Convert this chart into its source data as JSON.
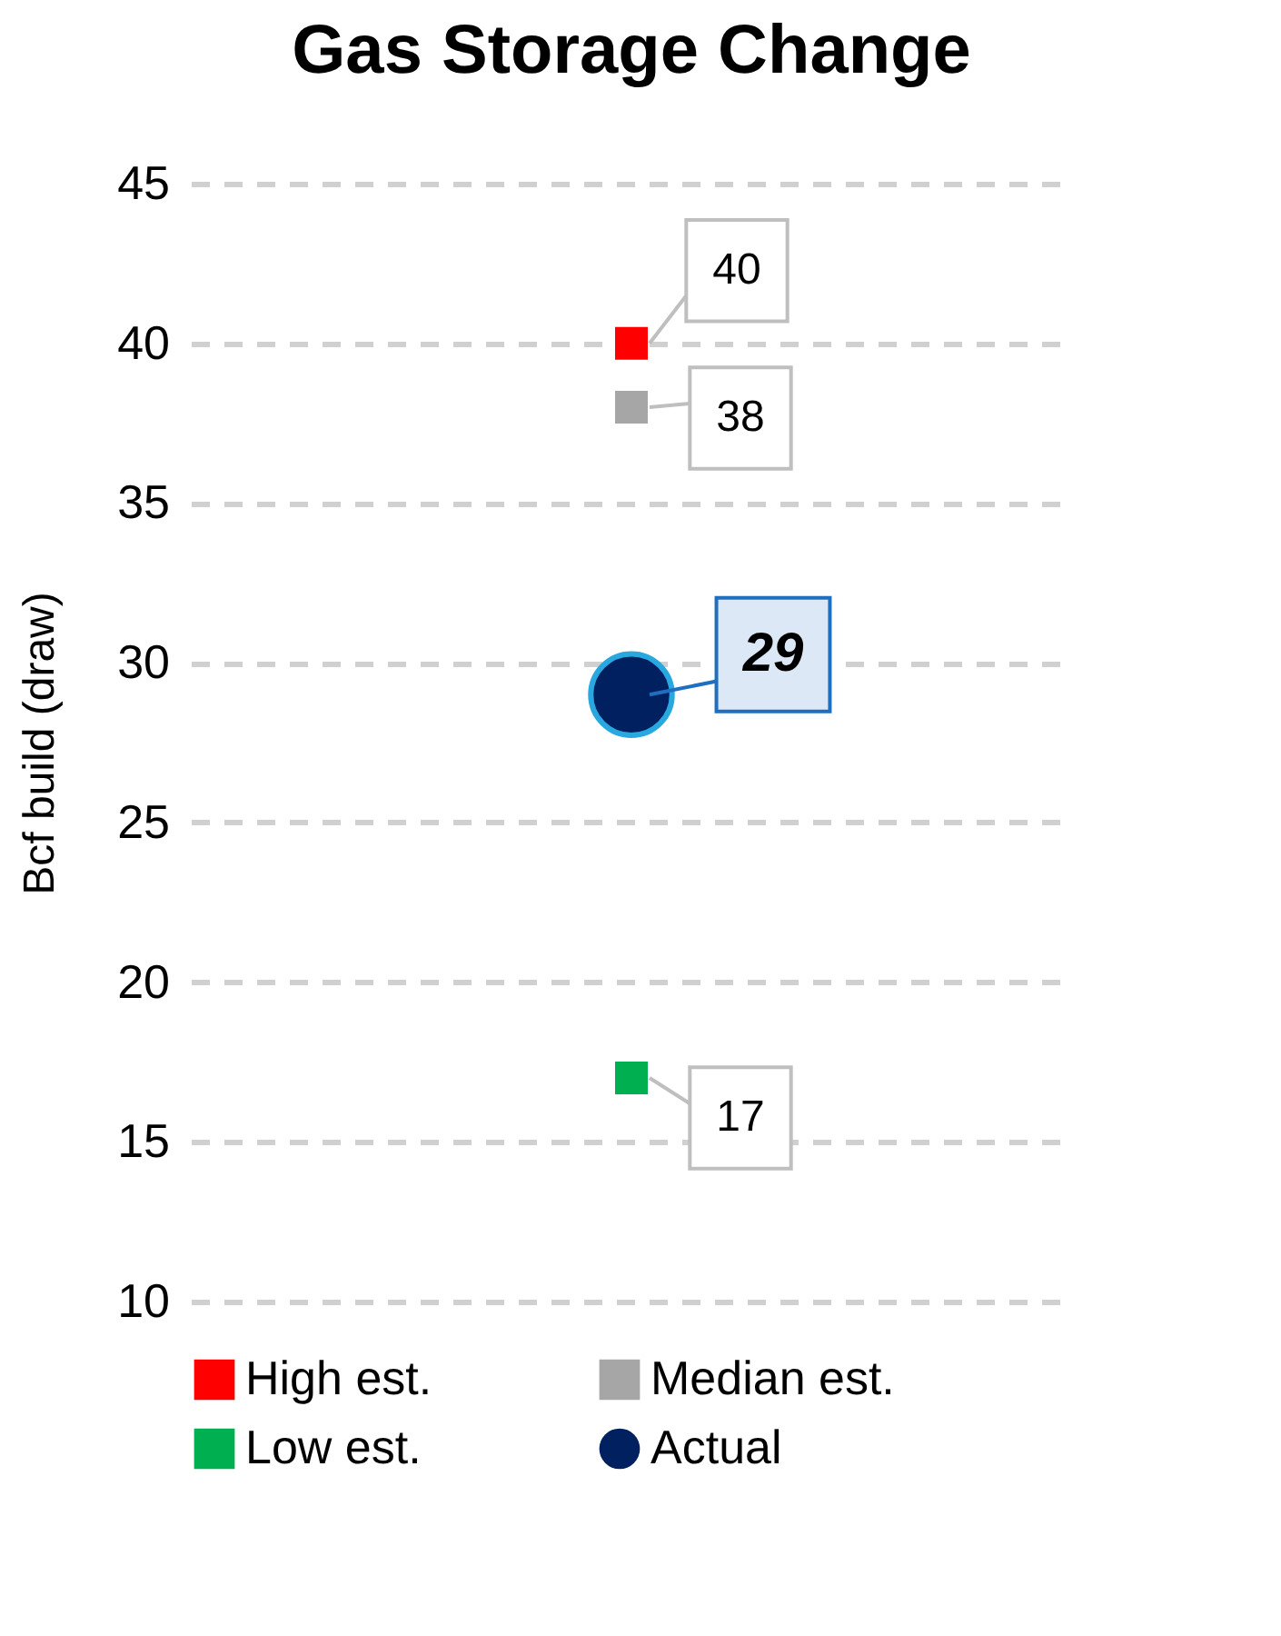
{
  "chart_data": {
    "type": "scatter",
    "title": "Gas Storage Change",
    "ylabel": "Bcf build (draw)",
    "categories": [
      null
    ],
    "series": [
      {
        "name": "High est.",
        "color": "#ff0000",
        "values": [
          40
        ],
        "marker": "square"
      },
      {
        "name": "Median est.",
        "color": "#a6a6a6",
        "values": [
          38
        ],
        "marker": "square"
      },
      {
        "name": "Low est.",
        "color": "#00b050",
        "values": [
          17
        ],
        "marker": "square"
      },
      {
        "name": "Actual",
        "color": "#002060",
        "values": [
          29
        ],
        "marker": "circle"
      }
    ],
    "ylim": [
      10,
      45
    ],
    "yticks": [
      10,
      15,
      20,
      25,
      30,
      35,
      40,
      45
    ],
    "grid": "y",
    "tick_labels": "y",
    "data_labels": true,
    "legend": "bottom"
  }
}
